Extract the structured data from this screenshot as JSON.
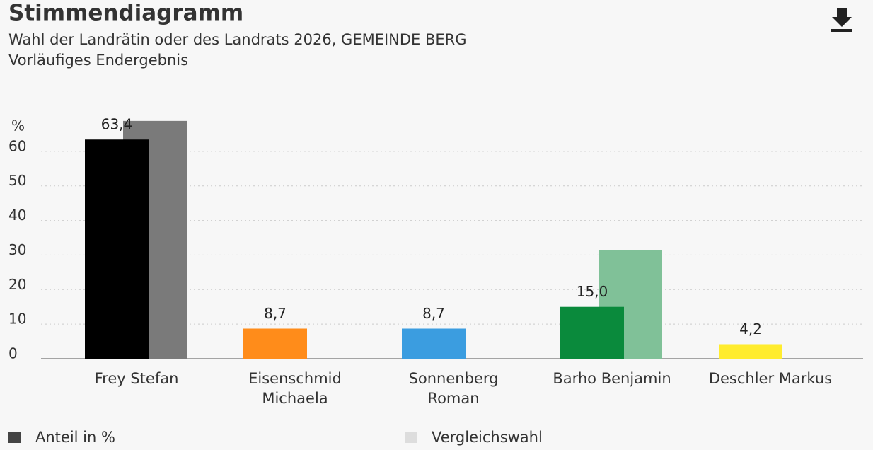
{
  "chart_data": {
    "type": "bar",
    "title": "Stimmendiagramm",
    "subtitle": [
      "Wahl der Landrätin oder des Landrats 2026, GEMEINDE BERG",
      "Vorläufiges Endergebnis"
    ],
    "y_label": "%",
    "categories": [
      "Frey Stefan",
      "Eisenschmid\nMichaela",
      "Sonnenberg\nRoman",
      "Barho Benjamin",
      "Deschler Markus"
    ],
    "series": [
      {
        "name": "Anteil in %",
        "color": "#444444",
        "colors": [
          "#000000",
          "#ff8c1a",
          "#3b9de0",
          "#0a8a3c",
          "#ffec2e"
        ],
        "values": [
          63.4,
          8.7,
          8.7,
          15.0,
          4.2
        ],
        "value_labels": [
          "63,4",
          "8,7",
          "8,7",
          "15,0",
          "4,2"
        ]
      },
      {
        "name": "Vergleichswahl",
        "color": "#dddddd",
        "colors": [
          "#7a7a7a",
          "#cccccc",
          "#cccccc",
          "#80c198",
          "#cccccc"
        ],
        "values": [
          68.8,
          null,
          null,
          31.5,
          null
        ]
      }
    ],
    "ylim": [
      0,
      70
    ],
    "yticks": [
      0,
      10,
      20,
      30,
      40,
      50,
      60
    ],
    "grid": true
  }
}
